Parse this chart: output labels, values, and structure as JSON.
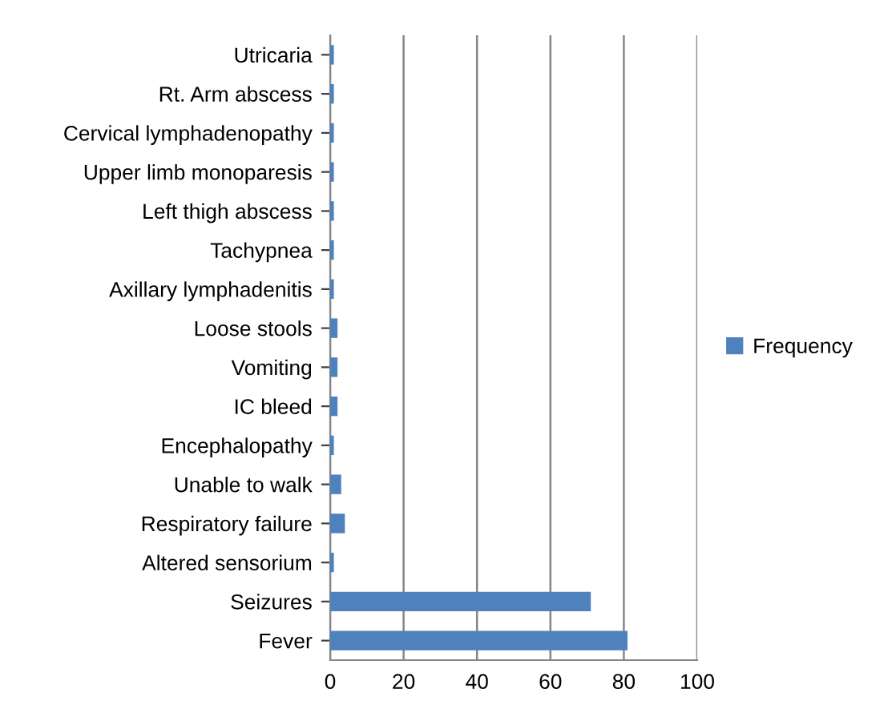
{
  "chart_data": {
    "type": "bar",
    "orientation": "horizontal",
    "categories": [
      "Utricaria",
      "Rt. Arm abscess",
      "Cervical lymphadenopathy",
      "Upper limb monoparesis",
      "Left thigh abscess",
      "Tachypnea",
      "Axillary lymphadenitis",
      "Loose stools",
      "Vomiting",
      "IC bleed",
      "Encephalopathy",
      "Unable to walk",
      "Respiratory failure",
      "Altered sensorium",
      "Seizures",
      "Fever"
    ],
    "series": [
      {
        "name": "Frequency",
        "color": "#4f81bd",
        "values": [
          1,
          1,
          1,
          1,
          1,
          1,
          1,
          2,
          2,
          2,
          1,
          3,
          4,
          1,
          71,
          81
        ]
      }
    ],
    "xlim": [
      0,
      100
    ],
    "xticks": [
      0,
      20,
      40,
      60,
      80,
      100
    ],
    "grid": "x",
    "legend": "right"
  }
}
